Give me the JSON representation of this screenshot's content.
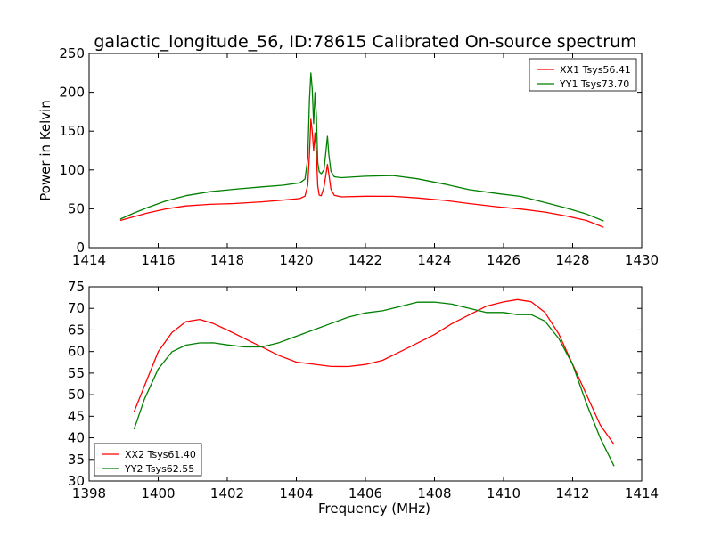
{
  "figure": {
    "title": "galactic_longitude_56, ID:78615 Calibrated On-source spectrum",
    "background": "#ffffff"
  },
  "chart_data": [
    {
      "type": "line",
      "title": "galactic_longitude_56, ID:78615 Calibrated On-source spectrum",
      "xlabel": "",
      "ylabel": "Power in Kelvin",
      "xlim": [
        1414,
        1430
      ],
      "ylim": [
        0,
        250
      ],
      "xticks": [
        1414,
        1416,
        1418,
        1420,
        1422,
        1424,
        1426,
        1428,
        1430
      ],
      "yticks": [
        0,
        50,
        100,
        150,
        200,
        250
      ],
      "grid": false,
      "legend_position": "top-right",
      "series": [
        {
          "name": "XX1 Tsys56.41",
          "color": "#ff0000",
          "x": [
            1414.9,
            1415.3,
            1415.7,
            1416.2,
            1416.8,
            1417.5,
            1418.2,
            1419.0,
            1419.6,
            1420.1,
            1420.25,
            1420.33,
            1420.38,
            1420.42,
            1420.46,
            1420.5,
            1420.54,
            1420.58,
            1420.62,
            1420.66,
            1420.72,
            1420.8,
            1420.86,
            1420.9,
            1420.94,
            1421.0,
            1421.1,
            1421.3,
            1422.0,
            1422.8,
            1423.5,
            1424.3,
            1425.0,
            1425.8,
            1426.5,
            1427.2,
            1427.8,
            1428.4,
            1428.9
          ],
          "y": [
            35,
            40,
            45,
            50,
            54,
            56,
            57,
            59,
            61,
            63,
            66,
            80,
            120,
            165,
            150,
            125,
            148,
            120,
            80,
            68,
            67,
            78,
            95,
            107,
            95,
            75,
            67,
            65,
            66,
            66,
            64,
            61,
            57,
            53,
            50,
            46,
            41,
            35,
            26
          ]
        },
        {
          "name": "YY1 Tsys73.70",
          "color": "#008000",
          "x": [
            1414.9,
            1415.3,
            1415.7,
            1416.2,
            1416.8,
            1417.5,
            1418.2,
            1419.0,
            1419.6,
            1420.1,
            1420.25,
            1420.33,
            1420.38,
            1420.42,
            1420.46,
            1420.5,
            1420.54,
            1420.58,
            1420.62,
            1420.66,
            1420.72,
            1420.8,
            1420.86,
            1420.9,
            1420.94,
            1421.0,
            1421.1,
            1421.3,
            1422.0,
            1422.8,
            1423.5,
            1424.3,
            1425.0,
            1425.8,
            1426.5,
            1427.2,
            1427.8,
            1428.4,
            1428.9
          ],
          "y": [
            37,
            45,
            52,
            60,
            67,
            72,
            75,
            78,
            80,
            83,
            88,
            115,
            190,
            225,
            205,
            160,
            200,
            170,
            110,
            98,
            95,
            100,
            125,
            143,
            120,
            98,
            91,
            90,
            92,
            93,
            89,
            82,
            75,
            70,
            66,
            58,
            51,
            43,
            34
          ]
        }
      ]
    },
    {
      "type": "line",
      "title": "",
      "xlabel": "Frequency (MHz)",
      "ylabel": "",
      "xlim": [
        1398,
        1414
      ],
      "ylim": [
        30,
        75
      ],
      "xticks": [
        1398,
        1400,
        1402,
        1404,
        1406,
        1408,
        1410,
        1412,
        1414
      ],
      "yticks": [
        30,
        35,
        40,
        45,
        50,
        55,
        60,
        65,
        70,
        75
      ],
      "grid": false,
      "legend_position": "bottom-left",
      "series": [
        {
          "name": "XX2 Tsys61.40",
          "color": "#ff0000",
          "x": [
            1399.3,
            1399.6,
            1400.0,
            1400.4,
            1400.8,
            1401.2,
            1401.6,
            1402.0,
            1402.5,
            1403.0,
            1403.5,
            1404.0,
            1404.5,
            1405.0,
            1405.5,
            1406.0,
            1406.5,
            1407.0,
            1407.5,
            1408.0,
            1408.5,
            1409.0,
            1409.5,
            1410.0,
            1410.4,
            1410.8,
            1411.2,
            1411.6,
            1412.0,
            1412.4,
            1412.8,
            1413.2
          ],
          "y": [
            46,
            52,
            60,
            64.5,
            67,
            67.5,
            66.5,
            65,
            63,
            61,
            59,
            57.5,
            57,
            56.5,
            56.5,
            57,
            58,
            60,
            62,
            64,
            66.5,
            68.5,
            70.5,
            71.5,
            72,
            71.5,
            69,
            64,
            57,
            50,
            43,
            38.5
          ]
        },
        {
          "name": "YY2 Tsys62.55",
          "color": "#008000",
          "x": [
            1399.3,
            1399.6,
            1400.0,
            1400.4,
            1400.8,
            1401.2,
            1401.6,
            1402.0,
            1402.5,
            1403.0,
            1403.5,
            1404.0,
            1404.5,
            1405.0,
            1405.5,
            1406.0,
            1406.5,
            1407.0,
            1407.5,
            1408.0,
            1408.5,
            1409.0,
            1409.5,
            1410.0,
            1410.4,
            1410.8,
            1411.2,
            1411.6,
            1412.0,
            1412.4,
            1412.8,
            1413.2
          ],
          "y": [
            42,
            49,
            56,
            60,
            61.5,
            62,
            62,
            61.5,
            61,
            61,
            62,
            63.5,
            65,
            66.5,
            68,
            69,
            69.5,
            70.5,
            71.5,
            71.5,
            71,
            70,
            69,
            69,
            68.5,
            68.5,
            67,
            63,
            57,
            48,
            40,
            33.5
          ]
        }
      ]
    }
  ]
}
